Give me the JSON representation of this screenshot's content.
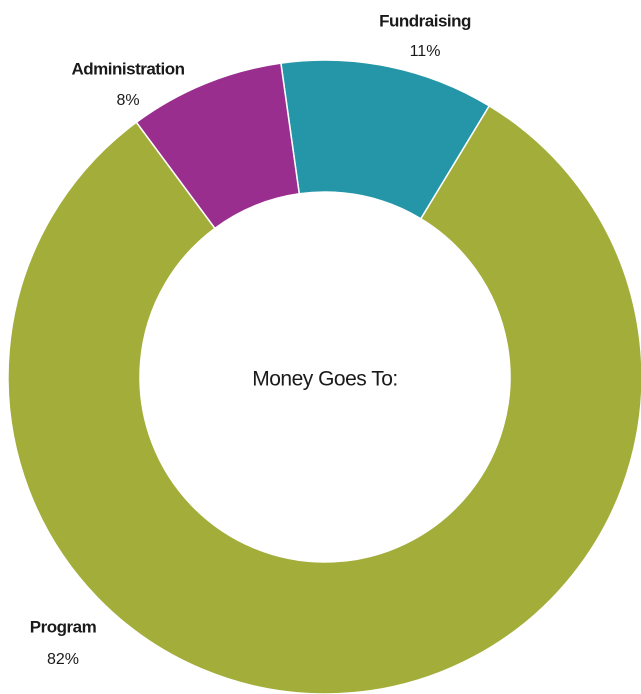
{
  "chart_data": {
    "type": "donut",
    "center_label": "Money Goes To:",
    "categories": [
      "Fundraising",
      "Program",
      "Administration"
    ],
    "values": [
      11,
      82,
      8
    ],
    "value_labels": [
      "11%",
      "82%",
      "8%"
    ],
    "colors": [
      "#2596a8",
      "#a3ad3a",
      "#992e8f"
    ]
  }
}
